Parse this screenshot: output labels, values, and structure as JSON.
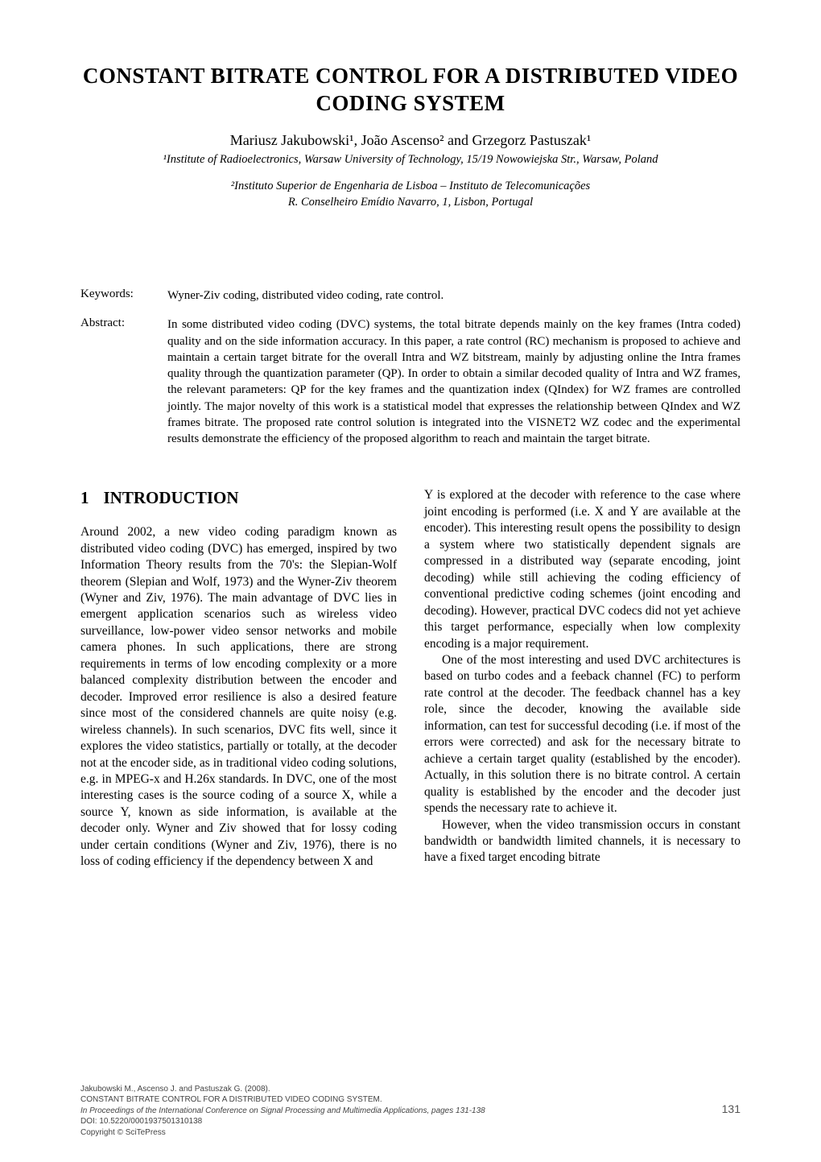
{
  "title_line1": "CONSTANT BITRATE CONTROL FOR A DISTRIBUTED VIDEO",
  "title_line2": "CODING SYSTEM",
  "authors_html": "Mariusz Jakubowski¹, João Ascenso² and Grzegorz Pastuszak¹",
  "affil1": "¹Institute of Radioelectronics, Warsaw University of Technology, 15/19 Nowowiejska Str., Warsaw, Poland",
  "affil2a": "²Instituto Superior de Engenharia de Lisboa – Instituto de Telecomunicações",
  "affil2b": "R. Conselheiro Emídio Navarro, 1, Lisbon, Portugal",
  "keywords_label": "Keywords:",
  "keywords_text": "Wyner-Ziv coding, distributed video coding, rate control.",
  "abstract_label": "Abstract:",
  "abstract_text": "In some distributed video coding (DVC) systems, the total bitrate depends mainly on the key frames (Intra coded) quality and on the side information accuracy. In this paper, a rate control (RC) mechanism is proposed to achieve and maintain a certain target bitrate for the overall Intra and WZ bitstream, mainly by adjusting online the Intra frames quality through the quantization parameter (QP). In order to obtain a similar decoded quality of Intra and WZ frames, the relevant parameters: QP for the key frames and the quantization index (QIndex) for WZ frames are controlled jointly. The major novelty of this work is a statistical model that expresses the relationship between QIndex and WZ frames bitrate. The proposed rate control solution is integrated into the VISNET2 WZ codec and the experimental results demonstrate the efficiency of the proposed algorithm to reach and maintain the target bitrate.",
  "section_number": "1",
  "section_title": "INTRODUCTION",
  "col1_p1": "Around 2002, a new video coding paradigm known as distributed video coding (DVC) has emerged, inspired by two Information Theory results from the 70's: the Slepian-Wolf theorem (Slepian and Wolf, 1973) and the Wyner-Ziv theorem (Wyner and Ziv, 1976). The main advantage of DVC lies in emergent application scenarios such as wireless video surveillance, low-power video sensor networks and mobile camera phones. In such applications, there are strong requirements in terms of low encoding complexity or a more balanced complexity distribution between the encoder and decoder. Improved error resilience is also a desired feature since most of the considered channels are quite noisy (e.g. wireless channels). In such scenarios, DVC fits well, since it  explores the video statistics, partially or totally, at the decoder not at the encoder side, as in traditional video coding solutions, e.g. in MPEG-x and H.26x standards. In DVC, one of the most interesting cases is the source coding of a source X, while a source Y, known as side information, is available at the decoder only. Wyner and Ziv showed that for lossy coding under certain conditions (Wyner and Ziv, 1976), there is no loss of coding efficiency if the dependency between X and",
  "col2_p1": "Y is explored at the decoder with reference to the case where joint encoding is performed (i.e. X and Y are available at the encoder). This interesting result opens the possibility to design a system where two statistically dependent signals are compressed in a distributed way (separate encoding, joint decoding) while still achieving the coding efficiency of conventional predictive coding schemes (joint encoding and decoding). However, practical DVC codecs did not yet achieve this target performance, especially when low complexity encoding is a major requirement.",
  "col2_p2": "One of the most interesting and used DVC architectures is based on turbo codes and a feeback channel (FC)  to perform rate control at the decoder. The feedback channel has a key role, since the decoder, knowing the available side information, can test for successful decoding (i.e. if most of the errors were corrected) and ask for the necessary bitrate to achieve a certain target quality (established by the encoder). Actually, in this solution there is no bitrate control. A certain quality is established by the encoder and the decoder just spends the necessary rate to achieve it.",
  "col2_p3": "However, when the video transmission occurs in constant bandwidth or bandwidth limited channels, it is necessary to have a fixed target encoding bitrate",
  "footer": {
    "l1": "Jakubowski M., Ascenso J. and Pastuszak G. (2008).",
    "l2": "CONSTANT BITRATE CONTROL FOR A DISTRIBUTED VIDEO CODING SYSTEM.",
    "l3": "In Proceedings of the International Conference on Signal Processing and Multimedia Applications, pages 131-138",
    "l4": "DOI: 10.5220/0001937501310138",
    "l5": "Copyright © SciTePress"
  },
  "page_number": "131"
}
